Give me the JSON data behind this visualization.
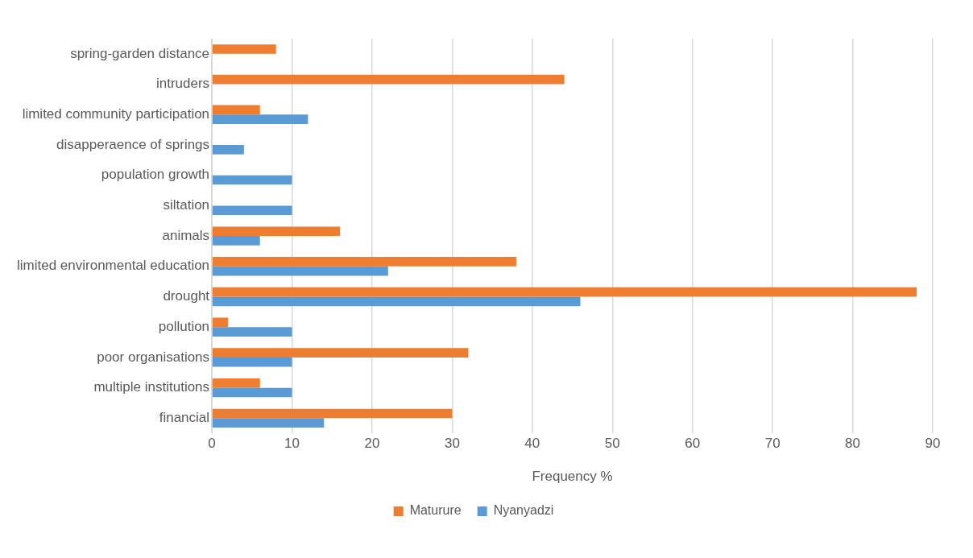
{
  "chart_data": {
    "type": "bar",
    "orientation": "horizontal",
    "xlabel": "Frequency %",
    "categories": [
      "spring-garden distance",
      "intruders",
      "limited community participation",
      "disapperaence of springs",
      "population growth",
      "siltation",
      "animals",
      "limited environmental education",
      "drought",
      "pollution",
      "poor organisations",
      "multiple institutions",
      "financial"
    ],
    "series": [
      {
        "name": "Maturure",
        "color": "#ed7d31",
        "values": [
          8,
          44,
          6,
          0,
          0,
          0,
          16,
          38,
          88,
          2,
          32,
          6,
          30
        ]
      },
      {
        "name": "Nyanyadzi",
        "color": "#5b9bd5",
        "values": [
          0,
          0,
          12,
          4,
          10,
          10,
          6,
          22,
          46,
          10,
          10,
          10,
          14
        ]
      }
    ],
    "xlim": [
      0,
      90
    ],
    "xticks": [
      0,
      10,
      20,
      30,
      40,
      50,
      60,
      70,
      80,
      90
    ],
    "grid": "x",
    "legend": "bottom"
  }
}
